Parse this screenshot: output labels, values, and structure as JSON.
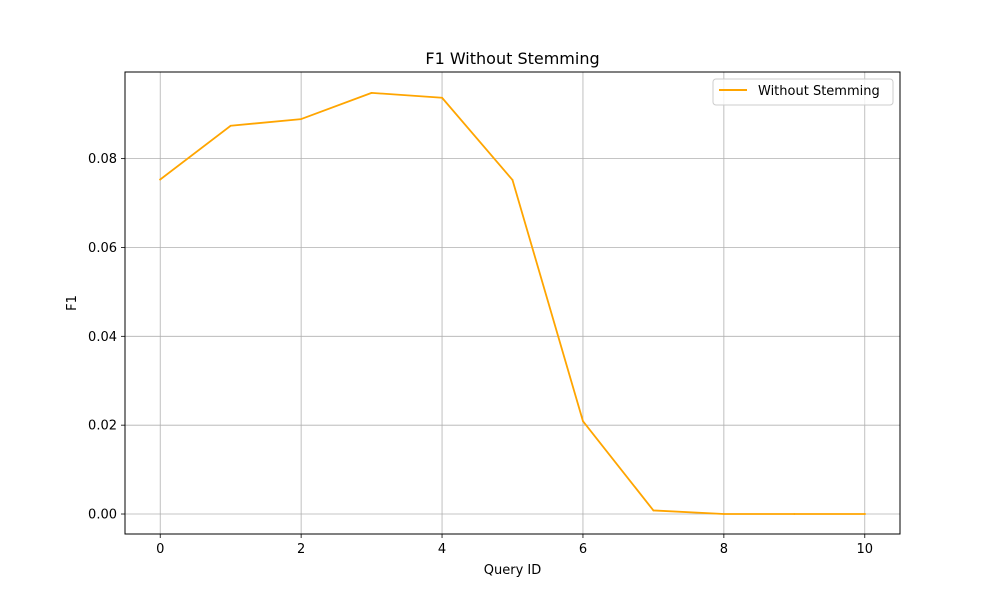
{
  "chart_data": {
    "type": "line",
    "title": "F1 Without Stemming",
    "xlabel": "Query ID",
    "ylabel": "F1",
    "xlim": [
      -0.5,
      10.5
    ],
    "ylim": [
      -0.0045,
      0.0995
    ],
    "x_ticks": [
      0,
      2,
      4,
      6,
      8,
      10
    ],
    "x_tick_labels": [
      "0",
      "2",
      "4",
      "6",
      "8",
      "10"
    ],
    "y_ticks": [
      0.0,
      0.02,
      0.04,
      0.06,
      0.08
    ],
    "y_tick_labels": [
      "0.00",
      "0.02",
      "0.04",
      "0.06",
      "0.08"
    ],
    "grid": true,
    "legend_position": "upper right",
    "series": [
      {
        "name": "Without Stemming",
        "color": "#FFA500",
        "x": [
          0,
          1,
          2,
          3,
          4,
          5,
          6,
          7,
          8,
          9,
          10
        ],
        "y": [
          0.0753,
          0.0874,
          0.0889,
          0.0948,
          0.0937,
          0.0752,
          0.0209,
          0.0008,
          0.0,
          0.0,
          0.0
        ]
      }
    ]
  }
}
